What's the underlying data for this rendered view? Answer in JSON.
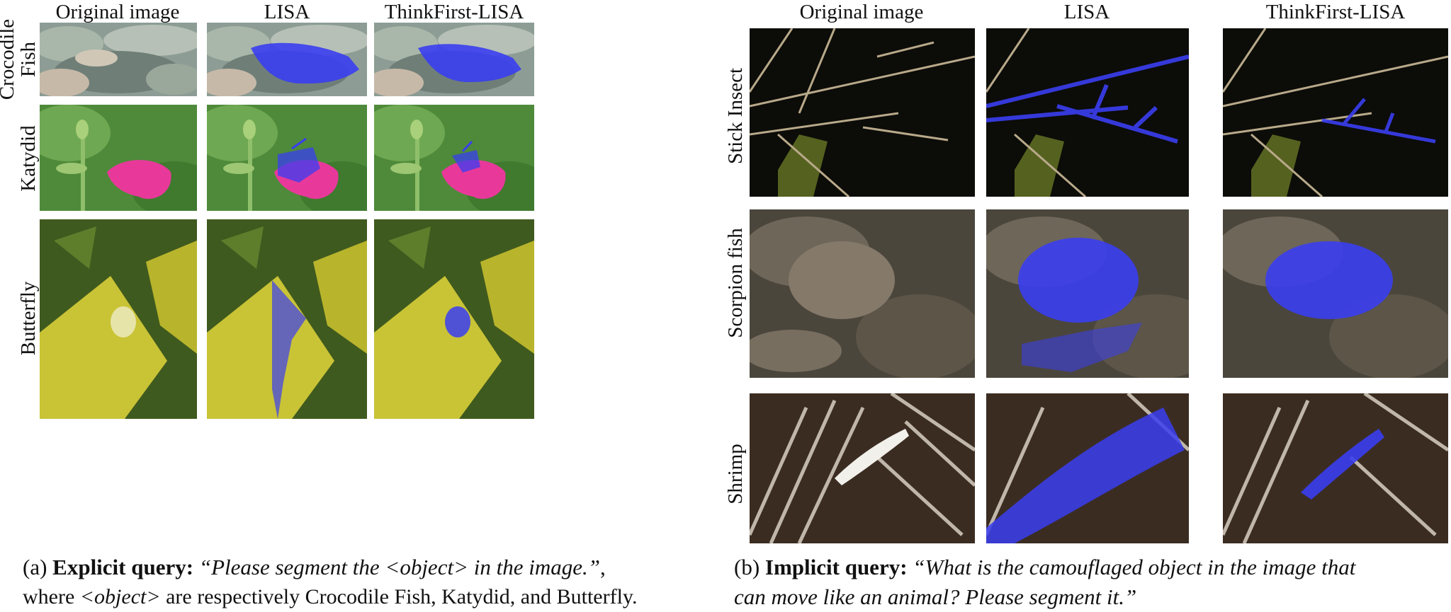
{
  "panel_a": {
    "columns": [
      "Original image",
      "LISA",
      "ThinkFirst-LISA"
    ],
    "rows": [
      "Crocodile Fish",
      "Katydid",
      "Butterfly"
    ],
    "row_lines": [
      [
        "Crocodile",
        "Fish"
      ],
      [
        "Katydid"
      ],
      [
        "Butterfly"
      ]
    ],
    "caption": {
      "prefix": "(a) ",
      "bold": "Explicit query:",
      "quote": "“Please segment the <object> in the image.”",
      "after_quote": ",",
      "line2_pre": "where ",
      "line2_obj": "<object>",
      "line2_post": " are respectively Crocodile Fish, Katydid, and Butterfly."
    }
  },
  "panel_b": {
    "columns": [
      "Original image",
      "LISA",
      "ThinkFirst-LISA"
    ],
    "rows": [
      "Stick Insect",
      "Scorpion fish",
      "Shrimp"
    ],
    "caption": {
      "prefix": "(b) ",
      "bold": "Implicit query:",
      "quote_line1": "“What is the camouflaged object in the image that",
      "quote_line2": "can move like an animal? Please segment it.”"
    }
  },
  "colors": {
    "mask_blue": "#3a3ef0",
    "flower_pink": "#e8399a",
    "leaf_yellow": "#c9c336",
    "reef": "#8a9a92",
    "rock": "#6e6658",
    "night": "#0c0c08"
  }
}
